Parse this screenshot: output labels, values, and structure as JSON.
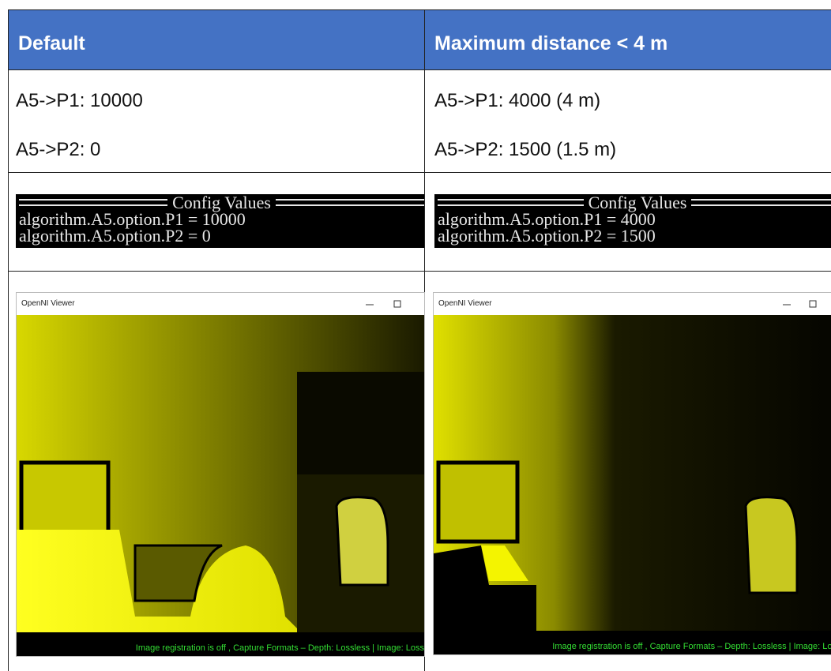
{
  "table": {
    "header": [
      "Default",
      "Maximum distance < 4 m"
    ],
    "settings": [
      [
        "A5->P1: 10000",
        "A5->P2: 0"
      ],
      [
        "A5->P1: 4000 (4 m)",
        "A5->P2: 1500 (1.5 m)"
      ]
    ],
    "console": [
      {
        "title": "Config Values",
        "lines": [
          "algorithm.A5.option.P1 = 10000",
          "algorithm.A5.option.P2 = 0"
        ]
      },
      {
        "title": "Config Values",
        "lines": [
          "algorithm.A5.option.P1 = 4000",
          "algorithm.A5.option.P2 = 1500"
        ]
      }
    ],
    "viewer": [
      {
        "title": "OpenNI Viewer",
        "status": "Image registration is off , Capture Formats – Depth: Lossless | Image: Loss"
      },
      {
        "title": "OpenNI Viewer",
        "status": "Image registration is off , Capture Formats – Depth: Lossless | Image: Los"
      }
    ]
  }
}
